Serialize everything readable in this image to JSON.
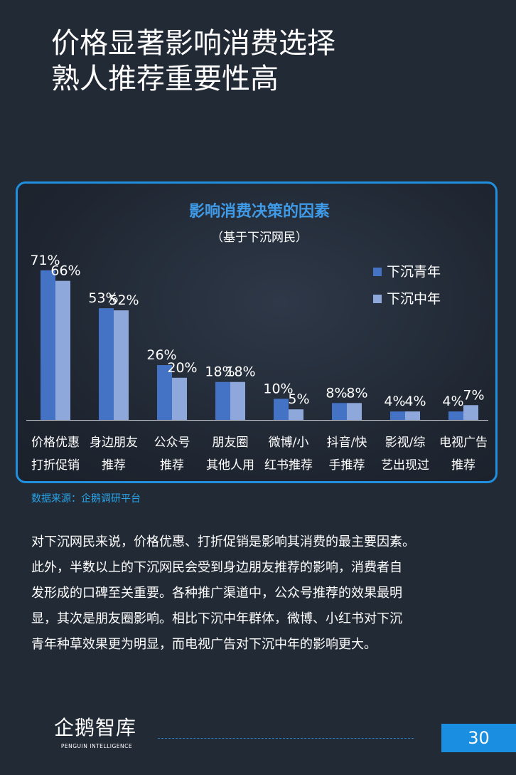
{
  "header": {
    "title_line1": "价格显著影响消费选择",
    "title_line2": "熟人推荐重要性高"
  },
  "chart_data": {
    "type": "bar",
    "title": "影响消费决策的因素",
    "subtitle": "（基于下沉网民）",
    "categories": [
      [
        "价格优惠",
        "打折促销"
      ],
      [
        "身边朋友",
        "推荐"
      ],
      [
        "公众号",
        "推荐"
      ],
      [
        "朋友圈",
        "其他人用"
      ],
      [
        "微博/小",
        "红书推荐"
      ],
      [
        "抖音/快",
        "手推荐"
      ],
      [
        "影视/综",
        "艺出现过"
      ],
      [
        "电视广告",
        "推荐"
      ]
    ],
    "series": [
      {
        "name": "下沉青年",
        "values": [
          71,
          53,
          26,
          18,
          10,
          8,
          4,
          4
        ],
        "color": "#4472c4"
      },
      {
        "name": "下沉中年",
        "values": [
          66,
          52,
          20,
          18,
          5,
          8,
          4,
          7
        ],
        "color": "#8fa8dc"
      }
    ],
    "unit": "%",
    "ylim": [
      0,
      75
    ],
    "grid": false,
    "legend_position": "top-right"
  },
  "source": "数据来源：企鹅调研平台",
  "body_lines": [
    "对下沉网民来说，价格优惠、打折促销是影响其消费的最主要因素。",
    "此外，半数以上的下沉网民会受到身边朋友推荐的影响，消费者自",
    "发形成的口碑至关重要。各种推广渠道中，公众号推荐的效果最明",
    "显，其次是朋友圈影响。相比下沉中年群体，微博、小红书对下沉",
    "青年种草效果更为明显，而电视广告对下沉中年的影响更大。"
  ],
  "footer": {
    "logo_cn": "企鹅智库",
    "logo_en": "PENGUIN INTELLIGENCE",
    "page_number": "30"
  }
}
